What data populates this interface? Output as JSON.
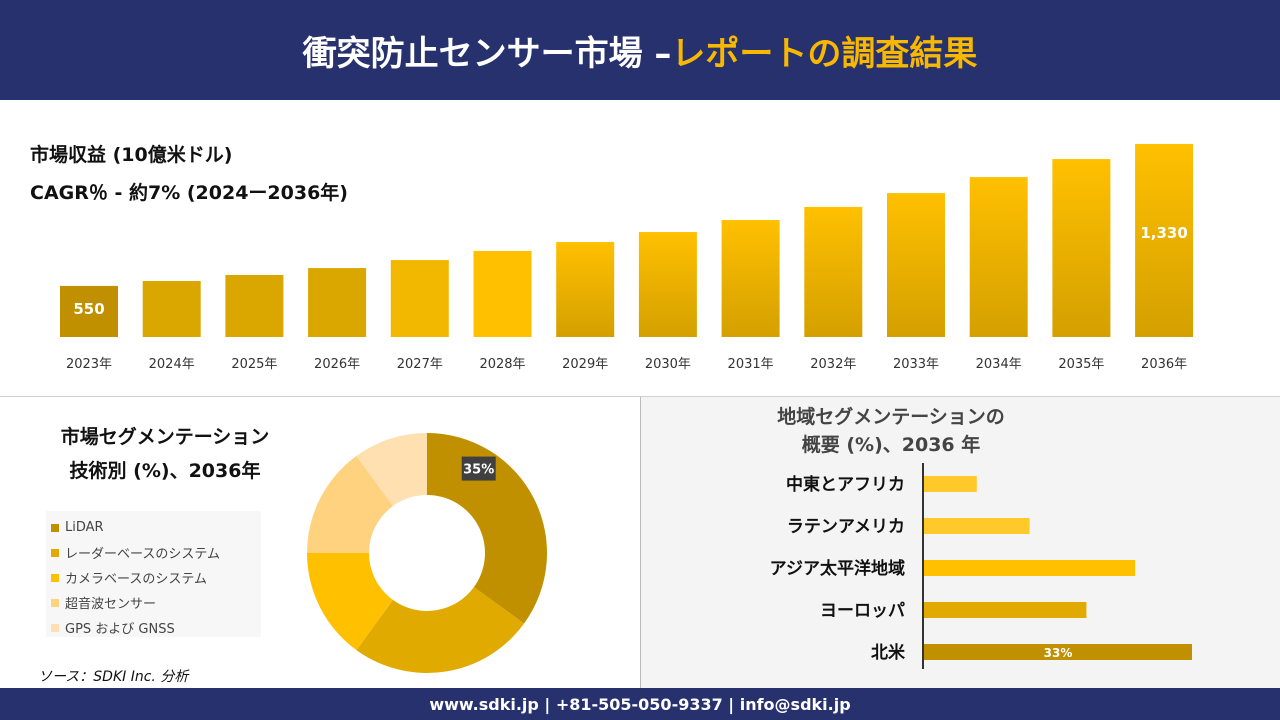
{
  "header": {
    "title_main": "衝突防止センサー市場 –",
    "title_accent": "レポートの調査結果"
  },
  "colors": {
    "header_bg": "#27316e",
    "accent": "#f8b800"
  },
  "revenue": {
    "title": "市場収益 (10億米ドル)",
    "cagr": "CAGR％ - 約7% (2024ー2036年)"
  },
  "chart_data": [
    {
      "type": "bar",
      "title": "市場収益 (10億米ドル)",
      "categories": [
        "2023年",
        "2024年",
        "2025年",
        "2026年",
        "2027年",
        "2028年",
        "2029年",
        "2030年",
        "2031年",
        "2032年",
        "2033年",
        "2034年",
        "2035年",
        "2036年"
      ],
      "values": [
        550,
        577,
        610,
        648,
        692,
        742,
        791,
        846,
        912,
        984,
        1060,
        1148,
        1247,
        1330
      ],
      "data_labels": {
        "0": "550",
        "13": "1,330"
      }
    },
    {
      "type": "pie",
      "title": "市場セグメンテーション 技術別 (%)、2036年",
      "labels": [
        "LiDAR",
        "レーダーベースのシステム",
        "カメラベースのシステム",
        "超音波センサー",
        "GPS および GNSS"
      ],
      "values": [
        35,
        25,
        15,
        15,
        10
      ],
      "colors": [
        "#c09000",
        "#e0aa00",
        "#ffc000",
        "#ffd280",
        "#ffe0b0"
      ],
      "data_labels": {
        "0": "35%"
      }
    },
    {
      "type": "bar",
      "orientation": "horizontal",
      "title": "地域セグメンテーションの 概要 (%)、2036 年",
      "categories": [
        "中東とアフリカ",
        "ラテンアメリカ",
        "アジア太平洋地域",
        "ヨーロッパ",
        "北米"
      ],
      "values": [
        6.5,
        13,
        26,
        20,
        33
      ],
      "colors": [
        "#ffc92a",
        "#ffc92a",
        "#ffc000",
        "#e0aa00",
        "#c09000"
      ],
      "data_labels": {
        "4": "33%"
      }
    }
  ],
  "segment": {
    "title_line1": "市場セグメンテーション",
    "title_line2": "技術別 (%)、2036年"
  },
  "region": {
    "title_line1": "地域セグメンテーションの",
    "title_line2": "概要 (%)、2036 年"
  },
  "source": "ソース：SDKI Inc. 分析",
  "footer": "www.sdki.jp | +81-505-050-9337 | info@sdki.jp"
}
